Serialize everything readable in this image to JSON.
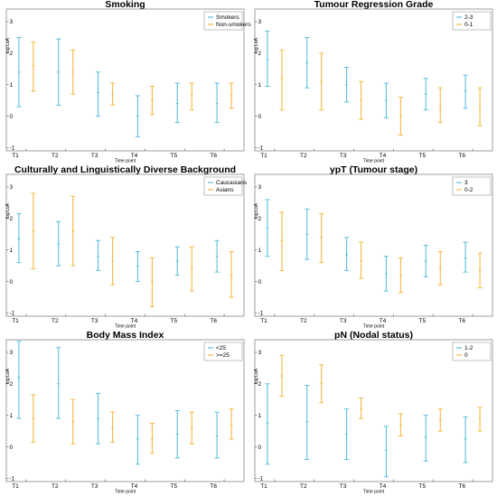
{
  "colors": {
    "series_a": "#5bc0de",
    "series_b": "#f5b942"
  },
  "chart_data": [
    {
      "type": "errorbar",
      "title": "Smoking",
      "xlabel": "Time point",
      "ylabel": "log LoA",
      "categories": [
        "T1",
        "T2",
        "T3",
        "T4",
        "T5",
        "T6"
      ],
      "ylim": [
        -1.1,
        3.4
      ],
      "yticks": [
        -1,
        0,
        1,
        2,
        3
      ],
      "legend_position": "top-right",
      "series": [
        {
          "name": "Smokers",
          "mean": [
            1.4,
            1.4,
            0.75,
            0.0,
            0.4,
            0.4
          ],
          "low": [
            0.3,
            0.35,
            0.0,
            -0.65,
            -0.2,
            -0.2
          ],
          "high": [
            2.5,
            2.45,
            1.4,
            0.65,
            1.05,
            1.05
          ]
        },
        {
          "name": "Non-smokers",
          "mean": [
            1.6,
            1.4,
            0.7,
            0.5,
            0.65,
            0.65
          ],
          "low": [
            0.8,
            0.7,
            0.35,
            0.05,
            0.2,
            0.25
          ],
          "high": [
            2.35,
            2.1,
            1.05,
            0.95,
            1.05,
            1.05
          ]
        }
      ]
    },
    {
      "type": "errorbar",
      "title": "Tumour Regression Grade",
      "xlabel": "Time point",
      "ylabel": "log LoA",
      "categories": [
        "T1",
        "T2",
        "T3",
        "T4",
        "T5",
        "T6"
      ],
      "ylim": [
        -1.1,
        3.4
      ],
      "yticks": [
        -1,
        0,
        1,
        2,
        3
      ],
      "legend_position": "top-right",
      "series": [
        {
          "name": "2-3",
          "mean": [
            1.8,
            1.7,
            1.0,
            0.5,
            0.7,
            0.8
          ],
          "low": [
            0.95,
            0.9,
            0.45,
            -0.05,
            0.2,
            0.25
          ],
          "high": [
            2.7,
            2.5,
            1.55,
            1.05,
            1.2,
            1.3
          ]
        },
        {
          "name": "0-1",
          "mean": [
            1.2,
            1.1,
            0.5,
            0.0,
            0.3,
            0.3
          ],
          "low": [
            0.2,
            0.2,
            -0.1,
            -0.6,
            -0.2,
            -0.3
          ],
          "high": [
            2.1,
            2.0,
            1.1,
            0.6,
            0.9,
            0.9
          ]
        }
      ]
    },
    {
      "type": "errorbar",
      "title": "Culturally and Linguistically Diverse Background",
      "xlabel": "Time point",
      "ylabel": "log LoA",
      "categories": [
        "T1",
        "T2",
        "T3",
        "T4",
        "T5",
        "T6"
      ],
      "ylim": [
        -1.1,
        3.4
      ],
      "yticks": [
        -1,
        0,
        1,
        2,
        3
      ],
      "legend_position": "top-right",
      "series": [
        {
          "name": "Caucasians",
          "mean": [
            1.35,
            1.2,
            0.8,
            0.5,
            0.65,
            0.8
          ],
          "low": [
            0.6,
            0.5,
            0.35,
            0.0,
            0.2,
            0.3
          ],
          "high": [
            2.15,
            1.9,
            1.3,
            0.95,
            1.1,
            1.3
          ]
        },
        {
          "name": "Asians",
          "mean": [
            1.6,
            1.6,
            0.65,
            0.0,
            0.4,
            0.2
          ],
          "low": [
            0.4,
            0.5,
            -0.1,
            -0.8,
            -0.3,
            -0.5
          ],
          "high": [
            2.8,
            2.7,
            1.4,
            0.75,
            1.1,
            0.95
          ]
        }
      ]
    },
    {
      "type": "errorbar",
      "title": "ypT (Tumour stage)",
      "xlabel": "Time point",
      "ylabel": "log LoA",
      "categories": [
        "T1",
        "T2",
        "T3",
        "T4",
        "T5",
        "T6"
      ],
      "ylim": [
        -1.1,
        3.4
      ],
      "yticks": [
        -1,
        0,
        1,
        2,
        3
      ],
      "legend_position": "top-right",
      "series": [
        {
          "name": "3",
          "mean": [
            1.7,
            1.5,
            0.85,
            0.25,
            0.65,
            0.75
          ],
          "low": [
            0.8,
            0.7,
            0.35,
            -0.3,
            0.15,
            0.3
          ],
          "high": [
            2.6,
            2.3,
            1.4,
            0.8,
            1.15,
            1.25
          ]
        },
        {
          "name": "0-2",
          "mean": [
            1.3,
            1.4,
            0.65,
            0.2,
            0.45,
            0.35
          ],
          "low": [
            0.35,
            0.6,
            0.1,
            -0.35,
            -0.1,
            -0.2
          ],
          "high": [
            2.2,
            2.15,
            1.25,
            0.75,
            0.95,
            0.9
          ]
        }
      ]
    },
    {
      "type": "errorbar",
      "title": "Body Mass Index",
      "xlabel": "Time point",
      "ylabel": "log LoA",
      "categories": [
        "T1",
        "T2",
        "T3",
        "T4",
        "T5",
        "T6"
      ],
      "ylim": [
        -1.1,
        3.4
      ],
      "yticks": [
        -1,
        0,
        1,
        2,
        3
      ],
      "legend_position": "top-right",
      "series": [
        {
          "name": "<25",
          "mean": [
            2.2,
            2.0,
            0.9,
            0.25,
            0.4,
            0.35
          ],
          "low": [
            0.9,
            0.9,
            0.1,
            -0.55,
            -0.35,
            -0.35
          ],
          "high": [
            3.35,
            3.15,
            1.7,
            1.0,
            1.15,
            1.1
          ]
        },
        {
          "name": ">=25",
          "mean": [
            0.9,
            0.8,
            0.6,
            0.25,
            0.6,
            0.7
          ],
          "low": [
            0.15,
            0.1,
            0.15,
            -0.2,
            0.1,
            0.25
          ],
          "high": [
            1.65,
            1.5,
            1.1,
            0.75,
            1.1,
            1.2
          ]
        }
      ]
    },
    {
      "type": "errorbar",
      "title": "pN (Nodal status)",
      "xlabel": "Time point",
      "ylabel": "log LoA",
      "categories": [
        "T1",
        "T2",
        "T3",
        "T4",
        "T5",
        "T6"
      ],
      "ylim": [
        -1.1,
        3.4
      ],
      "yticks": [
        -1,
        0,
        1,
        2,
        3
      ],
      "legend_position": "top-right",
      "series": [
        {
          "name": "1-2",
          "mean": [
            0.75,
            0.8,
            0.4,
            -0.1,
            0.3,
            0.25
          ],
          "low": [
            -0.55,
            -0.4,
            -0.4,
            -0.95,
            -0.45,
            -0.5
          ],
          "high": [
            2.0,
            1.95,
            1.2,
            0.65,
            1.0,
            0.95
          ]
        },
        {
          "name": "0",
          "mean": [
            2.25,
            2.0,
            1.2,
            0.7,
            0.85,
            0.9
          ],
          "low": [
            1.6,
            1.4,
            0.9,
            0.35,
            0.5,
            0.5
          ],
          "high": [
            2.9,
            2.6,
            1.55,
            1.05,
            1.2,
            1.25
          ]
        }
      ]
    }
  ]
}
